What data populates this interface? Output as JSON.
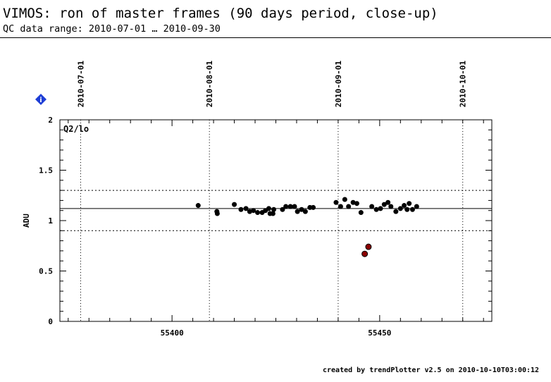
{
  "header": {
    "title": "VIMOS: ron of master frames (90 days period, close-up)",
    "subtitle": "QC data range: 2010-07-01 … 2010-09-30"
  },
  "footer": "created by trendPlotter v2.5 on 2010-10-10T03:00:12",
  "info_icon": {
    "name": "info-diamond-icon",
    "glyph": "i",
    "color": "#1f3fd6"
  },
  "chart_data": {
    "type": "scatter",
    "panel_label": "Q2/lo",
    "ylabel": "ADU",
    "xlim": [
      55373,
      55477
    ],
    "ylim": [
      0,
      2
    ],
    "x_ticks": [
      55400,
      55450
    ],
    "y_ticks": [
      {
        "value": 0,
        "label": "0"
      },
      {
        "value": 0.5,
        "label": "0.5"
      },
      {
        "value": 1,
        "label": "1"
      },
      {
        "value": 1.5,
        "label": "1.5"
      },
      {
        "value": 2,
        "label": "2"
      }
    ],
    "date_ticks": [
      {
        "mjd": 55378,
        "label": "2010-07-01"
      },
      {
        "mjd": 55409,
        "label": "2010-08-01"
      },
      {
        "mjd": 55440,
        "label": "2010-09-01"
      },
      {
        "mjd": 55470,
        "label": "2010-10-01"
      }
    ],
    "reference_line": 1.12,
    "threshold_lines": [
      0.9,
      1.3
    ],
    "colors": {
      "normal": "#000000",
      "outlier": "#8b0000"
    },
    "points": [
      {
        "x": 55406.3,
        "y": 1.15
      },
      {
        "x": 55410.8,
        "y": 1.09
      },
      {
        "x": 55410.9,
        "y": 1.07
      },
      {
        "x": 55415.0,
        "y": 1.16
      },
      {
        "x": 55416.6,
        "y": 1.11
      },
      {
        "x": 55417.8,
        "y": 1.12
      },
      {
        "x": 55418.7,
        "y": 1.09
      },
      {
        "x": 55419.6,
        "y": 1.1
      },
      {
        "x": 55420.6,
        "y": 1.08
      },
      {
        "x": 55421.7,
        "y": 1.08
      },
      {
        "x": 55422.5,
        "y": 1.1
      },
      {
        "x": 55423.3,
        "y": 1.12
      },
      {
        "x": 55423.6,
        "y": 1.07
      },
      {
        "x": 55424.3,
        "y": 1.07
      },
      {
        "x": 55424.5,
        "y": 1.11
      },
      {
        "x": 55426.6,
        "y": 1.11
      },
      {
        "x": 55427.4,
        "y": 1.14
      },
      {
        "x": 55428.5,
        "y": 1.14
      },
      {
        "x": 55429.5,
        "y": 1.14
      },
      {
        "x": 55430.2,
        "y": 1.09
      },
      {
        "x": 55431.2,
        "y": 1.11
      },
      {
        "x": 55432.1,
        "y": 1.09
      },
      {
        "x": 55433.2,
        "y": 1.13
      },
      {
        "x": 55434.0,
        "y": 1.13
      },
      {
        "x": 55439.5,
        "y": 1.18
      },
      {
        "x": 55440.6,
        "y": 1.14
      },
      {
        "x": 55441.6,
        "y": 1.21
      },
      {
        "x": 55442.5,
        "y": 1.14
      },
      {
        "x": 55443.6,
        "y": 1.18
      },
      {
        "x": 55444.5,
        "y": 1.17
      },
      {
        "x": 55445.5,
        "y": 1.08
      },
      {
        "x": 55446.4,
        "y": 0.67,
        "outlier": true
      },
      {
        "x": 55447.3,
        "y": 0.74,
        "outlier": true
      },
      {
        "x": 55448.1,
        "y": 1.14
      },
      {
        "x": 55449.2,
        "y": 1.11
      },
      {
        "x": 55450.2,
        "y": 1.12
      },
      {
        "x": 55451.1,
        "y": 1.16
      },
      {
        "x": 55452.0,
        "y": 1.18
      },
      {
        "x": 55452.7,
        "y": 1.14
      },
      {
        "x": 55453.9,
        "y": 1.09
      },
      {
        "x": 55455.0,
        "y": 1.12
      },
      {
        "x": 55455.9,
        "y": 1.15
      },
      {
        "x": 55456.6,
        "y": 1.11
      },
      {
        "x": 55457.1,
        "y": 1.17
      },
      {
        "x": 55457.9,
        "y": 1.11
      },
      {
        "x": 55458.9,
        "y": 1.14
      }
    ]
  }
}
